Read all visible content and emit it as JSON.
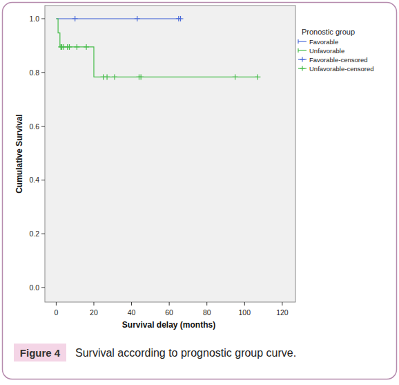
{
  "chart_data": {
    "type": "line",
    "title": "Survival according to prognostic group curve.",
    "annotations": [
      "Figure 4"
    ],
    "xlabel": "Survival delay  (months)",
    "ylabel": "Cumulative  Survival",
    "legend_title": "Pronostic group",
    "legend": "right",
    "grid": false,
    "xlim": [
      -6,
      127
    ],
    "ylim": [
      -0.054,
      1.049
    ],
    "xticks": [
      0,
      20,
      40,
      60,
      80,
      100,
      120
    ],
    "yticks": [
      {
        "value": 0,
        "label": "0.0"
      },
      0.2,
      0.4,
      0.6,
      0.8,
      {
        "value": 1,
        "label": "1.0"
      }
    ],
    "series": [
      {
        "name": "Favorable",
        "type": "line",
        "line_style": "steps",
        "color": "#4a6ad8",
        "x": [
          0,
          66
        ],
        "values": [
          1,
          1
        ]
      },
      {
        "name": "Unfavorable",
        "type": "line",
        "line_style": "steps",
        "color": "#46bc4a",
        "x": [
          0,
          1,
          2,
          20,
          107
        ],
        "values": [
          1,
          0.947,
          0.895,
          0.783,
          0.783
        ]
      },
      {
        "name": "Favorable-censored",
        "type": "scatter",
        "marker": "plus",
        "color": "#4a6ad8",
        "x": [
          10,
          43,
          65,
          66
        ],
        "values": [
          1,
          1,
          1,
          1
        ]
      },
      {
        "name": "Unfavorable-censored",
        "type": "scatter",
        "marker": "plus",
        "color": "#46bc4a",
        "x": [
          2.5,
          3,
          4,
          6,
          7,
          11,
          16,
          25,
          27,
          31,
          44,
          45,
          95,
          107
        ],
        "values": [
          0.895,
          0.895,
          0.895,
          0.895,
          0.895,
          0.895,
          0.895,
          0.783,
          0.783,
          0.783,
          0.783,
          0.783,
          0.783,
          0.783
        ]
      }
    ]
  }
}
